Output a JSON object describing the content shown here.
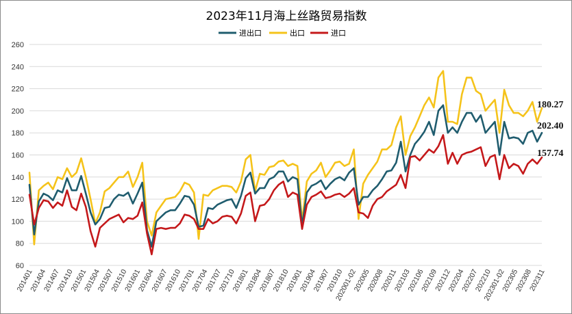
{
  "chart_data": {
    "type": "line",
    "title": "2023年11月海上丝路贸易指数",
    "xlabel": "",
    "ylabel": "",
    "ylim": [
      60,
      260
    ],
    "yticks": [
      60,
      80,
      100,
      120,
      140,
      160,
      180,
      200,
      220,
      240,
      260
    ],
    "grid": "horizontal",
    "legend_position": "top-center",
    "x_tick_labels": [
      "201401",
      "201404",
      "201407",
      "201410",
      "201501",
      "201504",
      "201507",
      "201510",
      "201601",
      "201604",
      "201607",
      "201610",
      "201701",
      "201704",
      "201707",
      "201710",
      "201801",
      "201804",
      "201807",
      "201810",
      "201901",
      "201904",
      "201907",
      "201910",
      "202001-02",
      "202005",
      "202008",
      "202011",
      "202103",
      "202106",
      "202109",
      "202112",
      "202204",
      "202207",
      "202210",
      "202301-02",
      "202305",
      "202308",
      "202311"
    ],
    "series": [
      {
        "name": "进出口",
        "color": "#1f5c6e",
        "end_label": "180.27",
        "values": [
          133,
          88,
          118,
          125,
          123,
          119,
          128,
          126,
          139,
          128,
          128,
          141,
          125,
          108,
          97,
          102,
          112,
          113,
          120,
          124,
          123,
          126,
          116,
          125,
          135,
          92,
          77,
          100,
          104,
          108,
          110,
          110,
          116,
          123,
          122,
          115,
          95,
          96,
          112,
          111,
          115,
          117,
          119,
          120,
          112,
          123,
          139,
          144,
          125,
          130,
          130,
          138,
          140,
          145,
          145,
          136,
          140,
          138,
          96,
          126,
          132,
          134,
          137,
          129,
          134,
          138,
          140,
          137,
          144,
          148,
          115,
          122,
          122,
          128,
          132,
          138,
          145,
          146,
          153,
          172,
          145,
          160,
          170,
          175,
          181,
          190,
          178,
          200,
          205,
          180,
          185,
          180,
          190,
          198,
          198,
          190,
          196,
          180,
          185,
          190,
          160,
          190,
          175,
          176,
          175,
          170,
          180,
          182,
          172,
          180
        ]
      },
      {
        "name": "出口",
        "color": "#f5c31a",
        "end_label": "202.40",
        "values": [
          144,
          79,
          128,
          132,
          135,
          129,
          140,
          138,
          148,
          140,
          144,
          157,
          140,
          120,
          98,
          108,
          127,
          130,
          135,
          140,
          140,
          145,
          131,
          140,
          153,
          100,
          87,
          108,
          114,
          120,
          121,
          122,
          127,
          135,
          133,
          126,
          84,
          124,
          123,
          128,
          130,
          132,
          132,
          131,
          126,
          136,
          156,
          160,
          127,
          143,
          142,
          149,
          150,
          154,
          155,
          150,
          152,
          150,
          100,
          136,
          143,
          146,
          153,
          140,
          146,
          153,
          154,
          150,
          152,
          165,
          102,
          134,
          142,
          148,
          154,
          165,
          165,
          169,
          185,
          195,
          160,
          177,
          185,
          195,
          205,
          212,
          203,
          230,
          236,
          190,
          190,
          188,
          215,
          230,
          230,
          218,
          215,
          200,
          205,
          210,
          180,
          219,
          205,
          198,
          198,
          195,
          200,
          208,
          190,
          202.4
        ]
      },
      {
        "name": "进口",
        "color": "#c4181a",
        "end_label": "157.74",
        "values": [
          124,
          97,
          112,
          119,
          118,
          112,
          117,
          114,
          128,
          113,
          110,
          125,
          113,
          91,
          77,
          94,
          98,
          102,
          104,
          106,
          99,
          103,
          102,
          105,
          117,
          89,
          70,
          93,
          94,
          93,
          94,
          94,
          98,
          106,
          105,
          102,
          93,
          93,
          102,
          98,
          100,
          104,
          105,
          104,
          98,
          107,
          123,
          126,
          100,
          114,
          115,
          120,
          128,
          133,
          136,
          122,
          126,
          124,
          93,
          115,
          122,
          124,
          127,
          121,
          122,
          124,
          125,
          122,
          125,
          130,
          108,
          107,
          103,
          114,
          120,
          122,
          127,
          130,
          133,
          142,
          130,
          158,
          159,
          155,
          160,
          165,
          162,
          168,
          178,
          152,
          162,
          152,
          160,
          162,
          163,
          165,
          167,
          150,
          158,
          160,
          138,
          160,
          148,
          152,
          150,
          143,
          152,
          156,
          152,
          157.74
        ]
      }
    ]
  }
}
